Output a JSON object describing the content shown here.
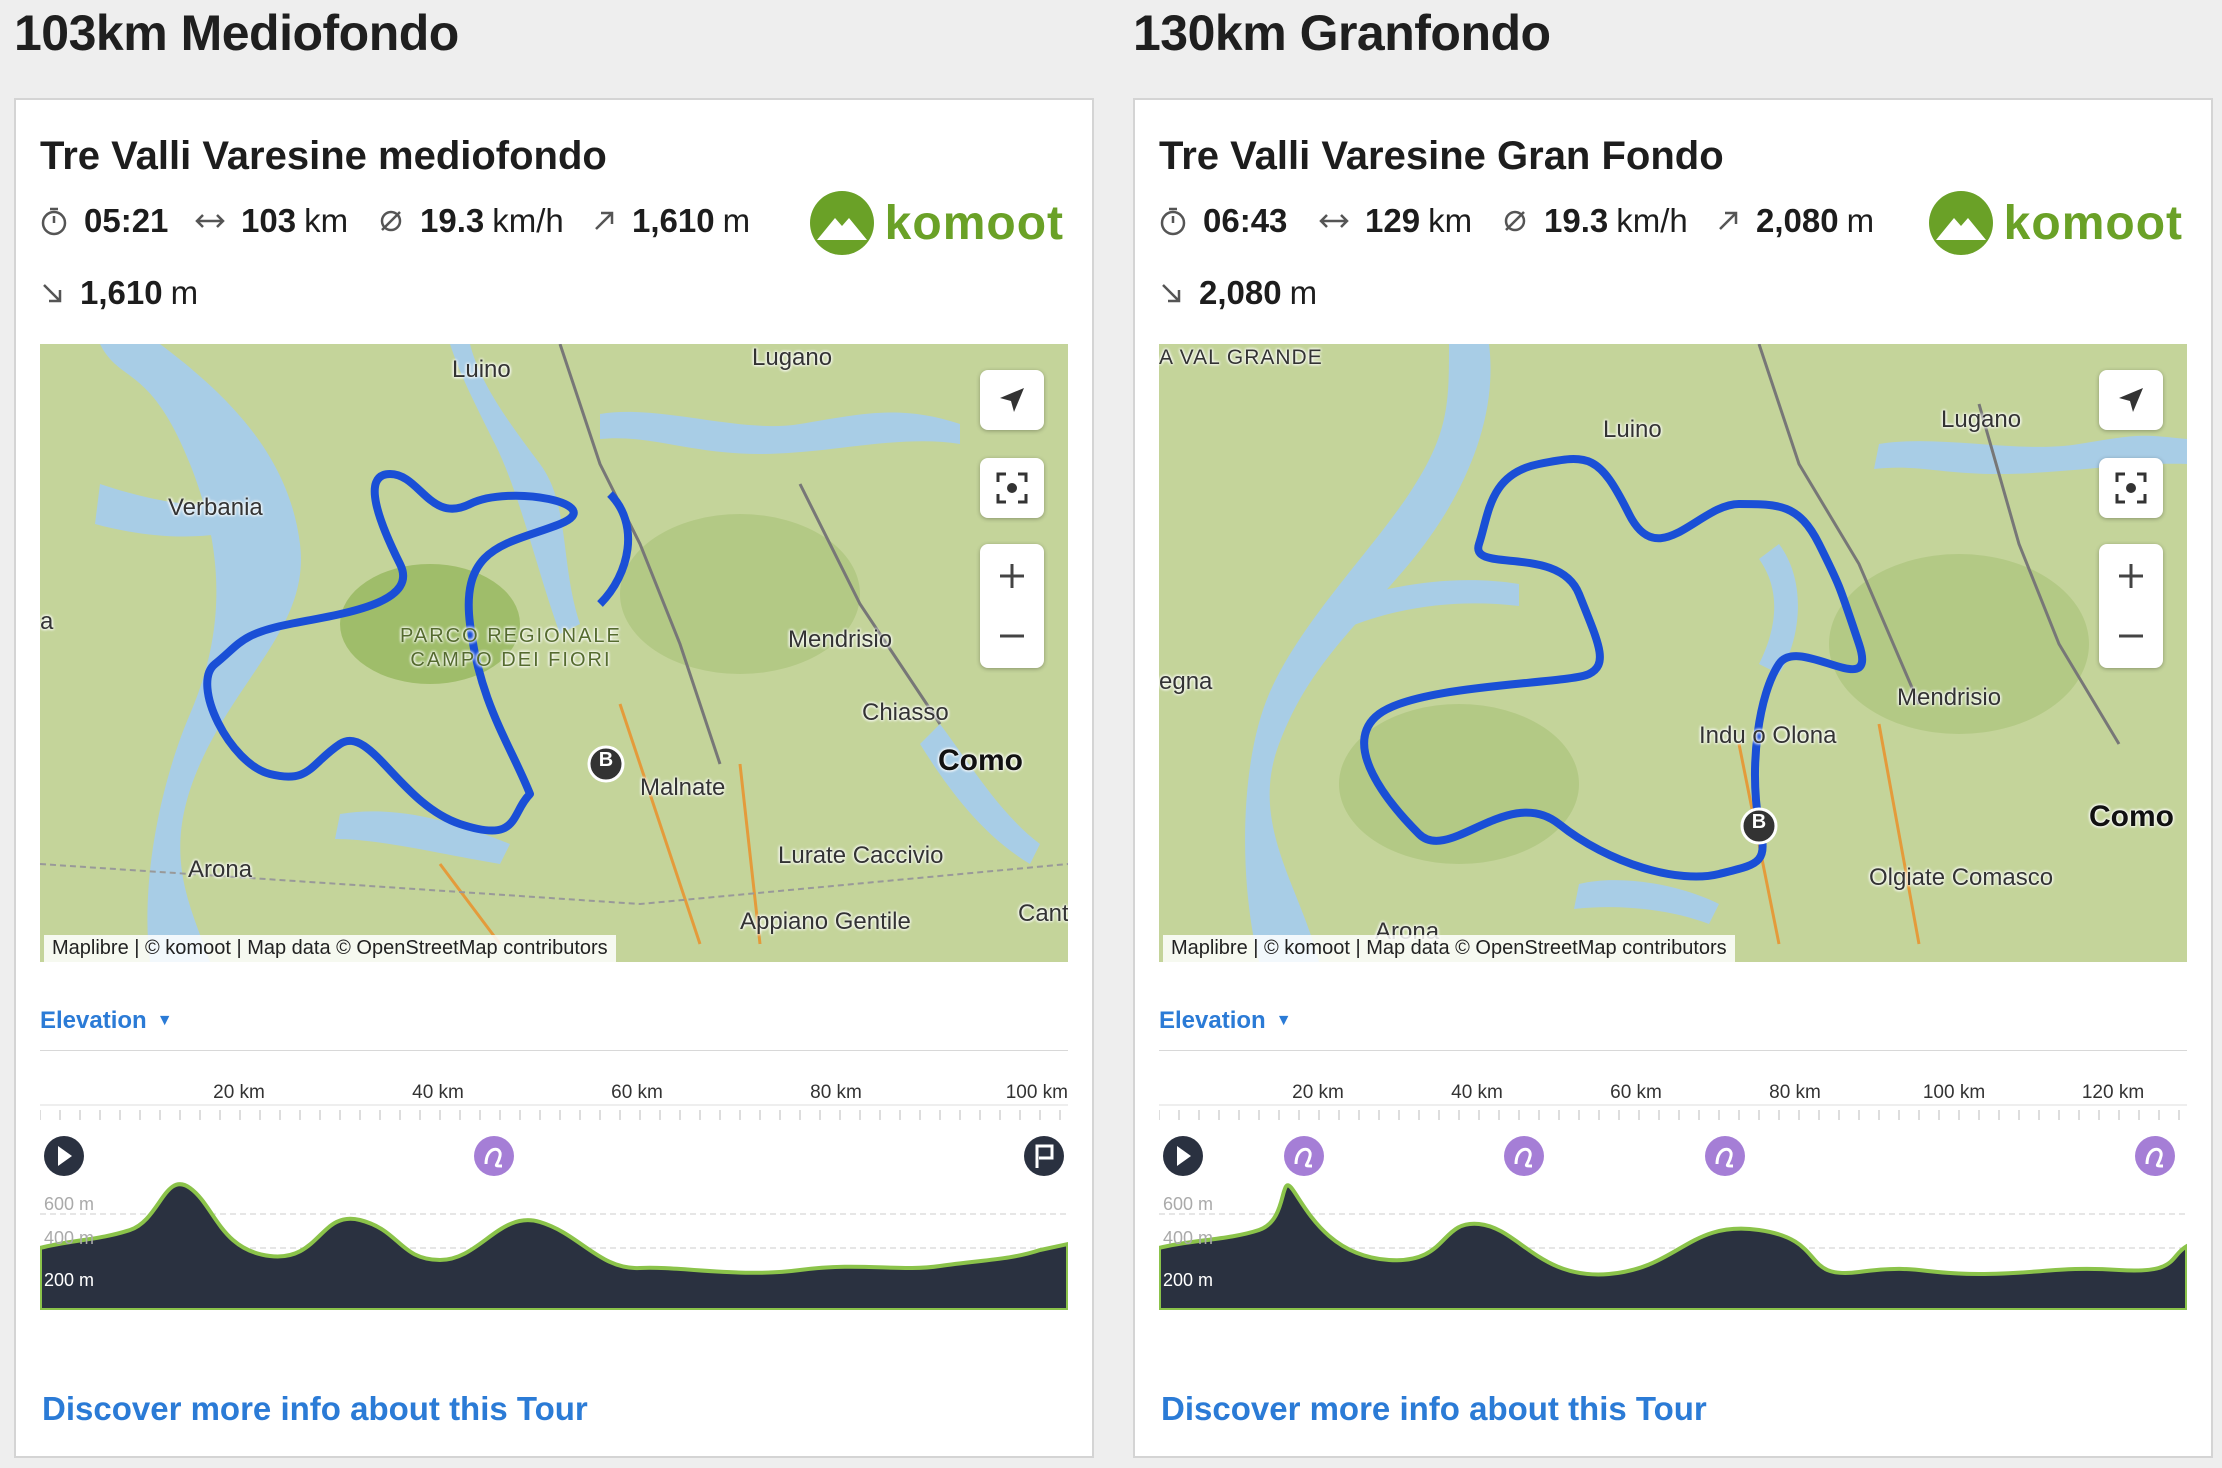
{
  "tours": [
    {
      "section_title": "103km Mediofondo",
      "tour_title": "Tre Valli Varesine mediofondo",
      "duration": "05:21",
      "distance_value": "103",
      "distance_unit": "km",
      "speed_value": "19.3",
      "speed_unit": "km/h",
      "ascent_value": "1,610",
      "ascent_unit": "m",
      "descent_value": "1,610",
      "descent_unit": "m",
      "brand": "komoot",
      "map_labels": [
        "Luino",
        "Lugano",
        "Verbania",
        "Mendrisio",
        "Chiasso",
        "Como",
        "Malnate",
        "Arona",
        "Lurate Caccivio",
        "Appiano Gentile",
        "Cant",
        "a",
        "PARCO REGIONALE",
        "CAMPO DEI FIORI"
      ],
      "start_marker": "B",
      "attribution": "Maplibre | © komoot | Map data © OpenStreetMap contributors",
      "elevation_label": "Elevation",
      "x_ticks": [
        "20 km",
        "40 km",
        "60 km",
        "80 km",
        "100 km"
      ],
      "y_ticks": [
        "600 m",
        "400 m",
        "200 m"
      ],
      "discover_link": "Discover more info about this Tour"
    },
    {
      "section_title": "130km Granfondo",
      "tour_title": "Tre Valli Varesine Gran Fondo",
      "duration": "06:43",
      "distance_value": "129",
      "distance_unit": "km",
      "speed_value": "19.3",
      "speed_unit": "km/h",
      "ascent_value": "2,080",
      "ascent_unit": "m",
      "descent_value": "2,080",
      "descent_unit": "m",
      "brand": "komoot",
      "map_labels": [
        "A VAL GRANDE",
        "Luino",
        "Lugano",
        "Mendrisio",
        "Indu o Olona",
        "Como",
        "Olgiate Comasco",
        "Arona",
        "egna"
      ],
      "start_marker": "B",
      "attribution": "Maplibre | © komoot | Map data © OpenStreetMap contributors",
      "elevation_label": "Elevation",
      "x_ticks": [
        "20 km",
        "40 km",
        "60 km",
        "80 km",
        "100 km",
        "120 km"
      ],
      "y_ticks": [
        "600 m",
        "400 m",
        "200 m"
      ],
      "discover_link": "Discover more info about this Tour"
    }
  ],
  "colors": {
    "route": "#1a4fd6",
    "brand_green": "#6aa127",
    "link_blue": "#2b7bd6",
    "highlight_purple": "#a57ed6",
    "profile_fill": "#2a3140",
    "profile_line": "#8bc34a"
  },
  "icons": [
    "stopwatch-icon",
    "distance-icon",
    "speed-icon",
    "ascent-icon",
    "descent-icon",
    "locate-icon",
    "fullscreen-icon",
    "zoom-in-icon",
    "zoom-out-icon",
    "play-icon",
    "highlight-icon",
    "finish-flag-icon",
    "caret-down-icon"
  ]
}
